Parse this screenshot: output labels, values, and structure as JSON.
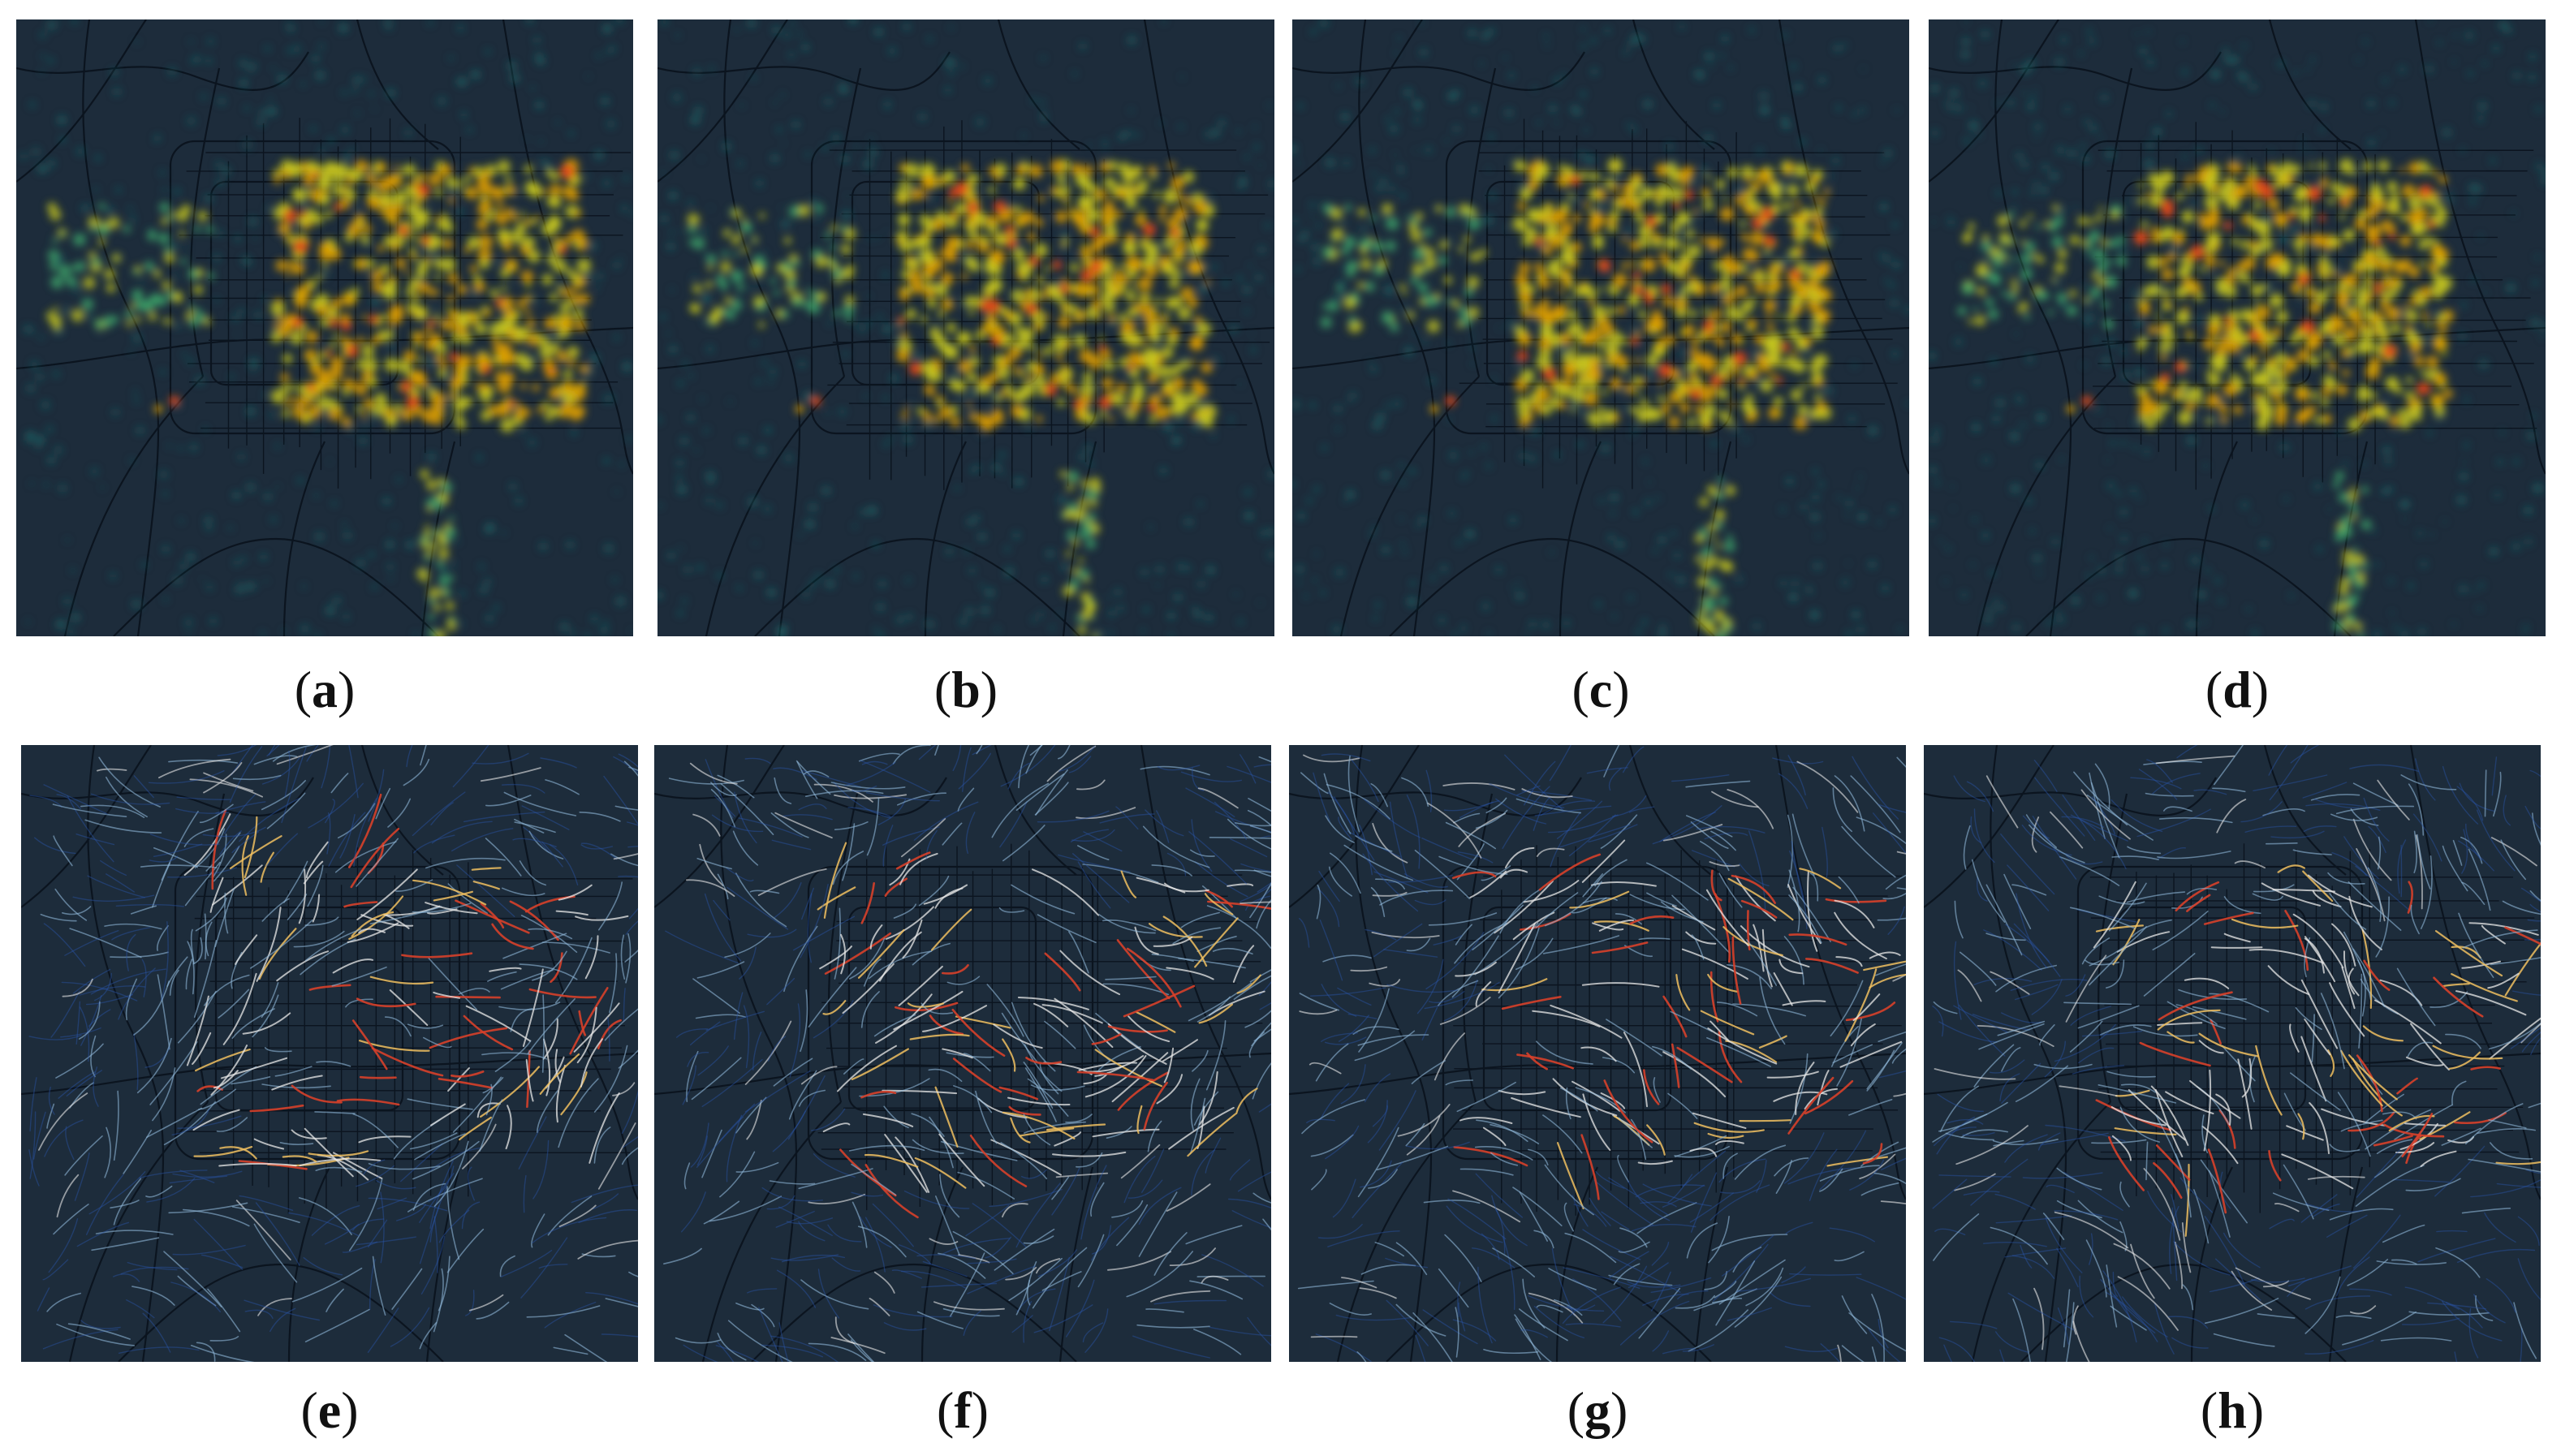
{
  "figure": {
    "background": "#1d2c3b",
    "road_color": "#0a121c",
    "heat_colors": [
      "#1f6f6f",
      "#3fa76a",
      "#c8c81e",
      "#e0a000",
      "#e64a19"
    ],
    "flow_colors": [
      "#2a55a8",
      "#8fb8d8",
      "#e8e8e8",
      "#f0c060",
      "#d8402a"
    ],
    "rows": [
      {
        "kind": "density-heatmap",
        "panels": [
          {
            "label": "a"
          },
          {
            "label": "b"
          },
          {
            "label": "c"
          },
          {
            "label": "d"
          }
        ]
      },
      {
        "kind": "flow-streamlines",
        "panels": [
          {
            "label": "e"
          },
          {
            "label": "f"
          },
          {
            "label": "g"
          },
          {
            "label": "h"
          }
        ]
      }
    ]
  }
}
